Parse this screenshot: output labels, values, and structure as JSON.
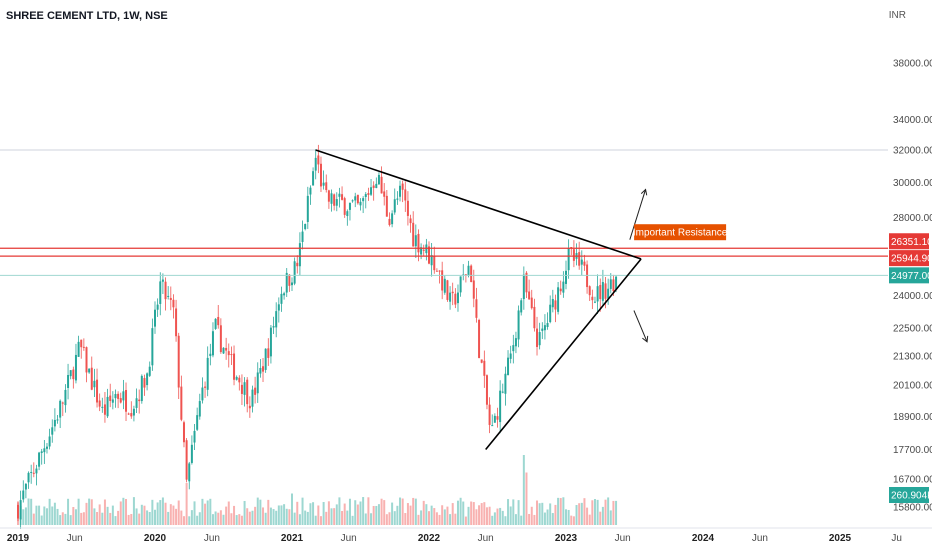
{
  "header": {
    "title": "SHREE CEMENT LTD, 1W, NSE",
    "currency": "INR"
  },
  "colors": {
    "up": "#26a69a",
    "down": "#ef5350",
    "resistance": "#e53935",
    "current": "#26a69a",
    "annotation_bg": "#e65100",
    "trendline": "#000000"
  },
  "chart_data": {
    "type": "candlestick",
    "symbol": "SHREE CEMENT LTD",
    "interval": "1W",
    "exchange": "NSE",
    "y_axis": {
      "scale": "log",
      "ticks": [
        "15800.00",
        "16700.00",
        "17700.00",
        "18900.00",
        "20100.00",
        "21300.00",
        "22500.00",
        "24000.00",
        "28000.00",
        "30000.00",
        "32000.00",
        "34000.00",
        "38000.00"
      ]
    },
    "x_axis": {
      "ticks": [
        {
          "label": "2019",
          "bold": true,
          "date": "2019-01-01"
        },
        {
          "label": "Jun",
          "bold": false,
          "date": "2019-06-01"
        },
        {
          "label": "2020",
          "bold": true,
          "date": "2020-01-01"
        },
        {
          "label": "Jun",
          "bold": false,
          "date": "2020-06-01"
        },
        {
          "label": "2021",
          "bold": true,
          "date": "2021-01-01"
        },
        {
          "label": "Jun",
          "bold": false,
          "date": "2021-06-01"
        },
        {
          "label": "2022",
          "bold": true,
          "date": "2022-01-01"
        },
        {
          "label": "Jun",
          "bold": false,
          "date": "2022-06-01"
        },
        {
          "label": "2023",
          "bold": true,
          "date": "2023-01-01"
        },
        {
          "label": "Jun",
          "bold": false,
          "date": "2023-06-01"
        },
        {
          "label": "2024",
          "bold": true,
          "date": "2024-01-01"
        },
        {
          "label": "Jun",
          "bold": false,
          "date": "2024-06-01"
        },
        {
          "label": "2025",
          "bold": true,
          "date": "2025-01-01"
        },
        {
          "label": "Ju",
          "bold": false,
          "date": "2025-06-01"
        }
      ]
    },
    "price_path": [
      [
        "2019-01-01",
        15800
      ],
      [
        "2019-03-01",
        17500
      ],
      [
        "2019-05-01",
        19500
      ],
      [
        "2019-06-15",
        21700
      ],
      [
        "2019-08-15",
        19000
      ],
      [
        "2019-09-20",
        19800
      ],
      [
        "2019-11-01",
        19300
      ],
      [
        "2019-12-10",
        20500
      ],
      [
        "2020-01-15",
        24500
      ],
      [
        "2020-02-20",
        23200
      ],
      [
        "2020-03-25",
        16500
      ],
      [
        "2020-05-01",
        19500
      ],
      [
        "2020-06-10",
        22500
      ],
      [
        "2020-07-20",
        21000
      ],
      [
        "2020-09-15",
        19500
      ],
      [
        "2020-11-01",
        21800
      ],
      [
        "2020-12-01",
        24200
      ],
      [
        "2021-01-15",
        25500
      ],
      [
        "2021-02-10",
        28500
      ],
      [
        "2021-03-05",
        31500
      ],
      [
        "2021-04-01",
        29000
      ],
      [
        "2021-05-15",
        28800
      ],
      [
        "2021-07-01",
        28500
      ],
      [
        "2021-08-15",
        30500
      ],
      [
        "2021-09-15",
        28000
      ],
      [
        "2021-10-20",
        29500
      ],
      [
        "2021-11-20",
        27000
      ],
      [
        "2021-12-20",
        26300
      ],
      [
        "2022-01-20",
        25500
      ],
      [
        "2022-03-01",
        23500
      ],
      [
        "2022-04-20",
        25600
      ],
      [
        "2022-05-10",
        22200
      ],
      [
        "2022-06-15",
        18200
      ],
      [
        "2022-08-10",
        21500
      ],
      [
        "2022-09-10",
        24600
      ],
      [
        "2022-10-20",
        21800
      ],
      [
        "2022-12-01",
        23700
      ],
      [
        "2023-01-10",
        26000
      ],
      [
        "2023-02-15",
        25200
      ],
      [
        "2023-03-20",
        24000
      ],
      [
        "2023-04-20",
        24400
      ],
      [
        "2023-05-20",
        24977
      ]
    ],
    "volume": {
      "last_label": "260.904K",
      "spikes": [
        [
          "2022-09-10",
          1.0
        ],
        [
          "2022-09-17",
          0.75
        ],
        [
          "2021-01-01",
          0.45
        ],
        [
          "2020-03-25",
          0.6
        ]
      ]
    },
    "price_labels": {
      "resistance_upper": "26351.10",
      "resistance_lower": "25944.90",
      "current": "24977.00"
    },
    "levels": {
      "resistance_upper": 26351.1,
      "resistance_lower": 25944.9,
      "current": 24977.0,
      "top_line": 32000
    },
    "trendlines": [
      {
        "name": "descending",
        "from": [
          "2021-03-05",
          32000
        ],
        "to": [
          "2023-07-20",
          25800
        ]
      },
      {
        "name": "ascending",
        "from": [
          "2022-06-01",
          17700
        ],
        "to": [
          "2023-07-20",
          25800
        ]
      }
    ],
    "arrows": [
      {
        "name": "breakout-up",
        "from": [
          "2023-06-20",
          26800
        ],
        "to": [
          "2023-08-01",
          29600
        ]
      },
      {
        "name": "breakdown-down",
        "from": [
          "2023-07-01",
          23300
        ],
        "to": [
          "2023-08-05",
          21900
        ]
      }
    ],
    "annotation": {
      "text": "Important Resistance",
      "anchor": [
        "2023-11-01",
        27200
      ]
    }
  }
}
